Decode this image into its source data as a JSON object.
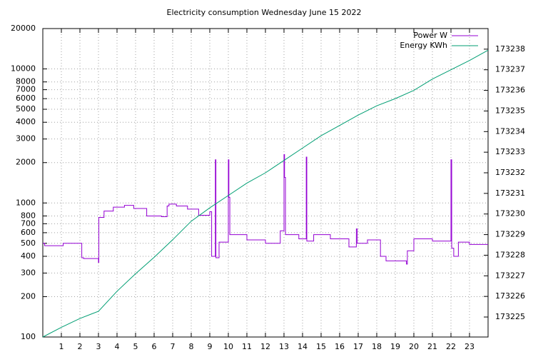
{
  "chart_data": {
    "type": "line",
    "title": "Electricity consumption Wednesday June 15 2022",
    "xlim": [
      0,
      24
    ],
    "xticks": [
      1,
      2,
      3,
      4,
      5,
      6,
      7,
      8,
      9,
      10,
      11,
      12,
      13,
      14,
      15,
      16,
      17,
      18,
      19,
      20,
      21,
      22,
      23
    ],
    "ylim": [
      100,
      20000
    ],
    "yticks": [
      100,
      200,
      300,
      400,
      500,
      600,
      700,
      800,
      1000,
      2000,
      3000,
      4000,
      5000,
      6000,
      7000,
      8000,
      10000,
      20000
    ],
    "log_scale": true,
    "y2lim": [
      173224.03,
      173239.0
    ],
    "y2ticks": [
      173225,
      173226,
      173227,
      173228,
      173229,
      173230,
      173231,
      173232,
      173233,
      173234,
      173235,
      173236,
      173237,
      173238
    ],
    "grid": true,
    "legend": "top-right",
    "series": [
      {
        "name": "Power W",
        "color": "#9400d3",
        "step": true,
        "x": [
          0,
          0.1,
          1.1,
          2.1,
          2.2,
          3,
          3.02,
          3.3,
          3.8,
          4.4,
          4.9,
          5.6,
          6.4,
          6.7,
          6.8,
          7.2,
          7.8,
          8.4,
          9,
          9.1,
          9.3,
          9.33,
          9.5,
          10,
          10.03,
          10.08,
          11,
          12,
          12.8,
          13,
          13.03,
          13.08,
          13.8,
          14.2,
          14.23,
          14.6,
          15.5,
          16.5,
          16.9,
          16.95,
          17.5,
          18.2,
          18.5,
          19.6,
          19.65,
          20,
          21,
          22,
          22.04,
          22.15,
          22.4,
          23,
          24
        ],
        "values": [
          500,
          480,
          500,
          390,
          385,
          360,
          780,
          870,
          930,
          960,
          910,
          800,
          790,
          950,
          980,
          950,
          900,
          810,
          860,
          400,
          2100,
          390,
          510,
          2100,
          1100,
          580,
          530,
          500,
          620,
          2300,
          1550,
          580,
          540,
          2200,
          520,
          580,
          540,
          470,
          640,
          500,
          530,
          400,
          370,
          350,
          440,
          540,
          520,
          2100,
          460,
          400,
          510,
          490,
          490
        ]
      },
      {
        "name": "Energy KWh",
        "color": "#009e73",
        "axis": "y2",
        "x": [
          0,
          1,
          2,
          3,
          4,
          5,
          6,
          7,
          8,
          9,
          10,
          11,
          12,
          13,
          14,
          15,
          16,
          17,
          18,
          19,
          20,
          21,
          22,
          23,
          24
        ],
        "values": [
          173224.03,
          173224.5,
          173224.93,
          173225.28,
          173226.25,
          173227.1,
          173227.9,
          173228.75,
          173229.65,
          173230.3,
          173230.9,
          173231.5,
          173232.0,
          173232.6,
          173233.2,
          173233.8,
          173234.3,
          173234.8,
          173235.25,
          173235.6,
          173236.0,
          173236.55,
          173237.0,
          173237.45,
          173237.95
        ]
      }
    ]
  }
}
